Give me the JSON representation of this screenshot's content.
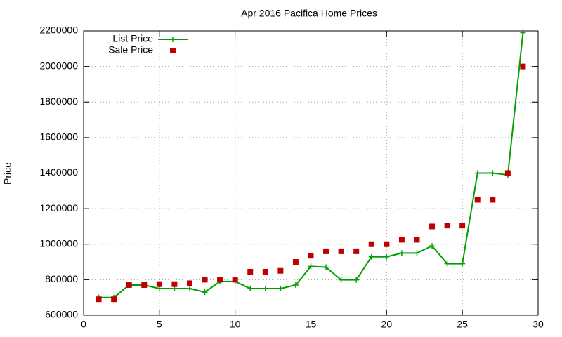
{
  "chart_data": {
    "type": "line",
    "title": "Apr 2016 Pacifica Home Prices",
    "y_label": "Price",
    "x": [
      1,
      2,
      3,
      4,
      5,
      6,
      7,
      8,
      9,
      10,
      11,
      12,
      13,
      14,
      15,
      16,
      17,
      18,
      19,
      20,
      21,
      22,
      23,
      24,
      25,
      26,
      27,
      28,
      29
    ],
    "series": [
      {
        "name": "List Price",
        "color": "#00a000",
        "marker": "plus",
        "line": true,
        "values": [
          700000,
          700000,
          770000,
          770000,
          750000,
          750000,
          750000,
          730000,
          790000,
          790000,
          750000,
          750000,
          750000,
          770000,
          875000,
          870000,
          799000,
          799000,
          929000,
          929000,
          950000,
          950000,
          990000,
          890000,
          890000,
          1400000,
          1400000,
          1390000,
          2190000
        ]
      },
      {
        "name": "Sale Price",
        "color": "#c00000",
        "marker": "square",
        "line": false,
        "values": [
          690000,
          690000,
          770000,
          770000,
          775000,
          775000,
          780000,
          800000,
          800000,
          800000,
          845000,
          845000,
          850000,
          900000,
          935000,
          960000,
          960000,
          960000,
          1000000,
          1000000,
          1025000,
          1025000,
          1100000,
          1105000,
          1105000,
          1250000,
          1250000,
          1400000,
          2000000
        ]
      }
    ],
    "xlim": [
      0,
      30
    ],
    "xticks": [
      0,
      5,
      10,
      15,
      20,
      25,
      30
    ],
    "ylim": [
      600000,
      2200000
    ],
    "yticks": [
      600000,
      800000,
      1000000,
      1200000,
      1400000,
      1600000,
      1800000,
      2000000,
      2200000
    ],
    "grid": true,
    "legend": "top-left"
  }
}
